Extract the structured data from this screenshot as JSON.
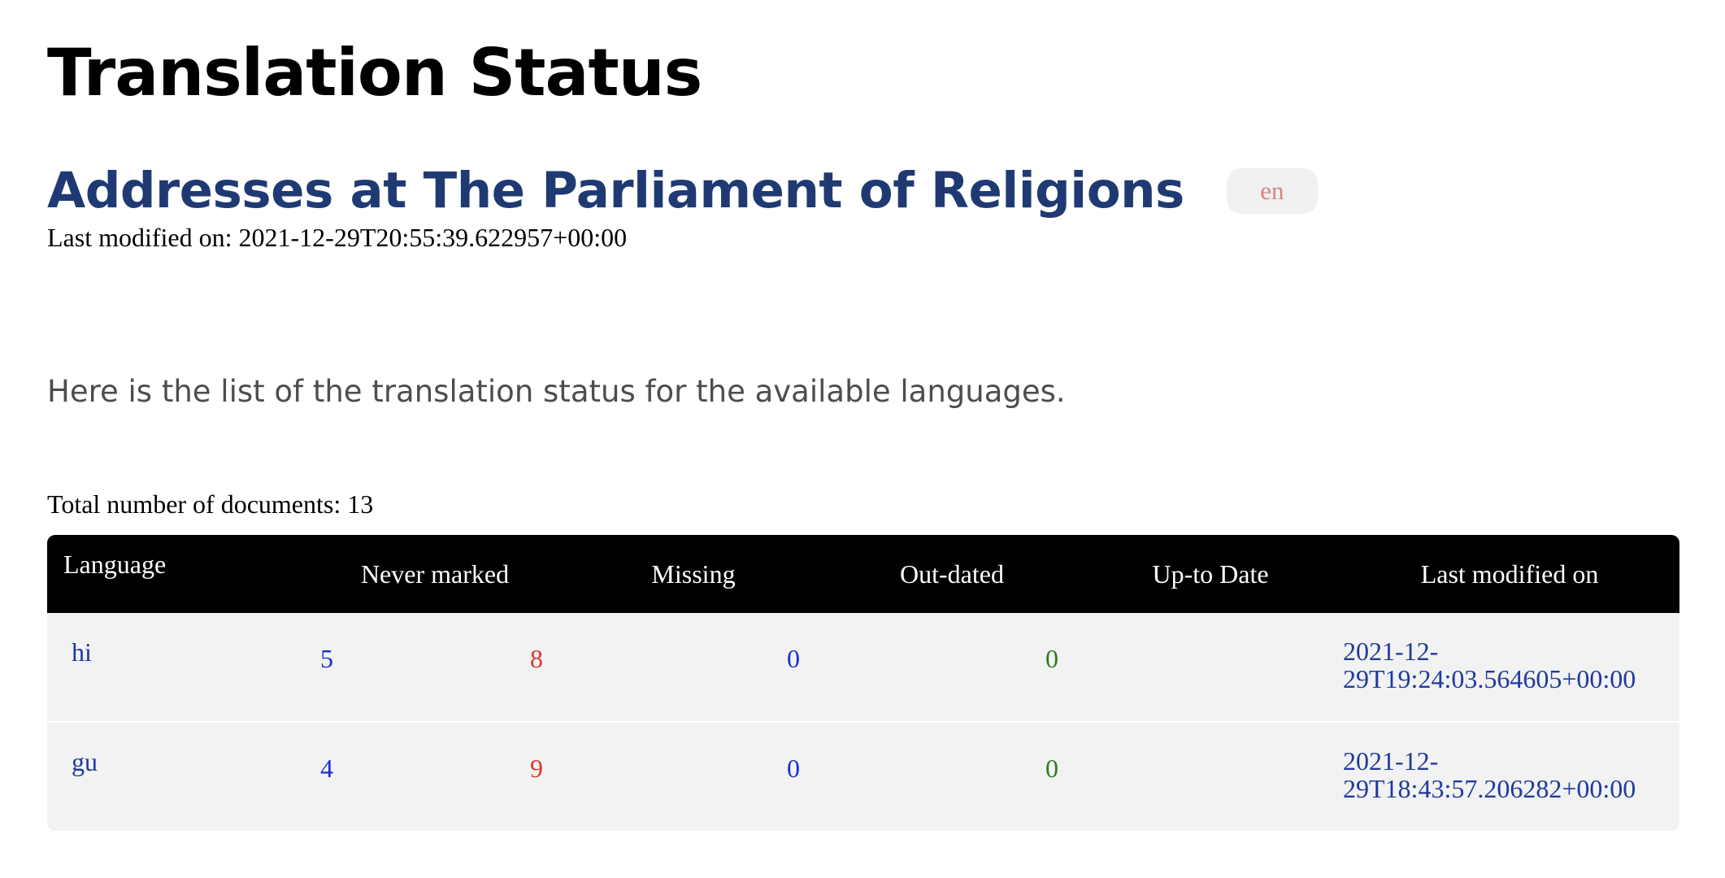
{
  "page": {
    "title": "Translation Status"
  },
  "document": {
    "title": "Addresses at The Parliament of Religions",
    "language_badge": "en",
    "last_modified_label": "Last modified on:",
    "last_modified_value": "2021-12-29T20:55:39.622957+00:00"
  },
  "intro_text": "Here is the list of the translation status for the available languages.",
  "total": {
    "label": "Total number of documents:",
    "value": "13"
  },
  "table": {
    "headers": [
      "Language",
      "Never marked",
      "Missing",
      "Out-dated",
      "Up-to Date",
      "Last modified on"
    ],
    "rows": [
      {
        "language": "hi",
        "never_marked": "5",
        "missing": "8",
        "outdated": "0",
        "uptodate": "0",
        "last_modified_line1": "2021-12-",
        "last_modified_line2": "29T19:24:03.564605+00:00"
      },
      {
        "language": "gu",
        "never_marked": "4",
        "missing": "9",
        "outdated": "0",
        "uptodate": "0",
        "last_modified_line1": "2021-12-",
        "last_modified_line2": "29T18:43:57.206282+00:00"
      }
    ]
  },
  "colors": {
    "title_blue": "#1f3a73",
    "never_marked": "#1a2fd6",
    "missing": "#d93a2b",
    "outdated": "#1a2fd6",
    "uptodate": "#2f7a1f",
    "header_bg": "#000000",
    "row_bg": "#f2f2f2"
  }
}
